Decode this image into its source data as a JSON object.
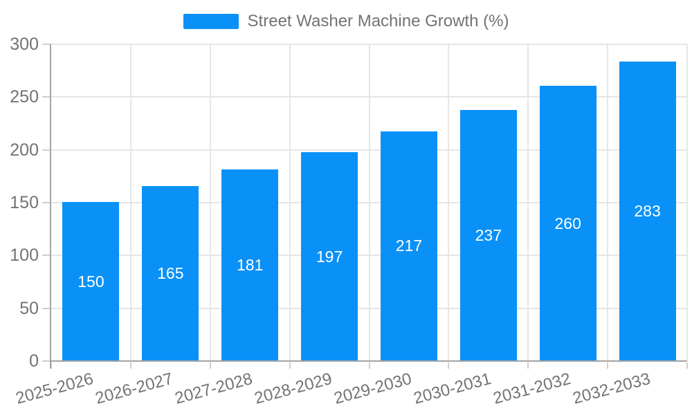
{
  "chart_data": {
    "type": "bar",
    "title": "",
    "legend": [
      "Street Washer Machine Growth (%)"
    ],
    "legend_position": "top-center",
    "categories": [
      "2025-2026",
      "2026-2027",
      "2027-2028",
      "2028-2029",
      "2029-2030",
      "2030-2031",
      "2031-2032",
      "2032-2033"
    ],
    "values": [
      150,
      165,
      181,
      197,
      217,
      237,
      260,
      283
    ],
    "xlabel": "",
    "ylabel": "",
    "ylim": [
      0,
      300
    ],
    "yticks": [
      0,
      50,
      100,
      150,
      200,
      250,
      300
    ],
    "x_label_rotation_deg": -15,
    "grid": true,
    "value_labels_position": "center-inside",
    "bar_color": "#0A91F7",
    "value_label_color": "#FFFFFF"
  },
  "colors": {
    "bar": "#0A91F7",
    "grid": "#E6E6E6",
    "axis_line": "#A3A3A3",
    "tick": "#CFCFCF",
    "text": "#737373",
    "background": "#FFFFFF"
  }
}
